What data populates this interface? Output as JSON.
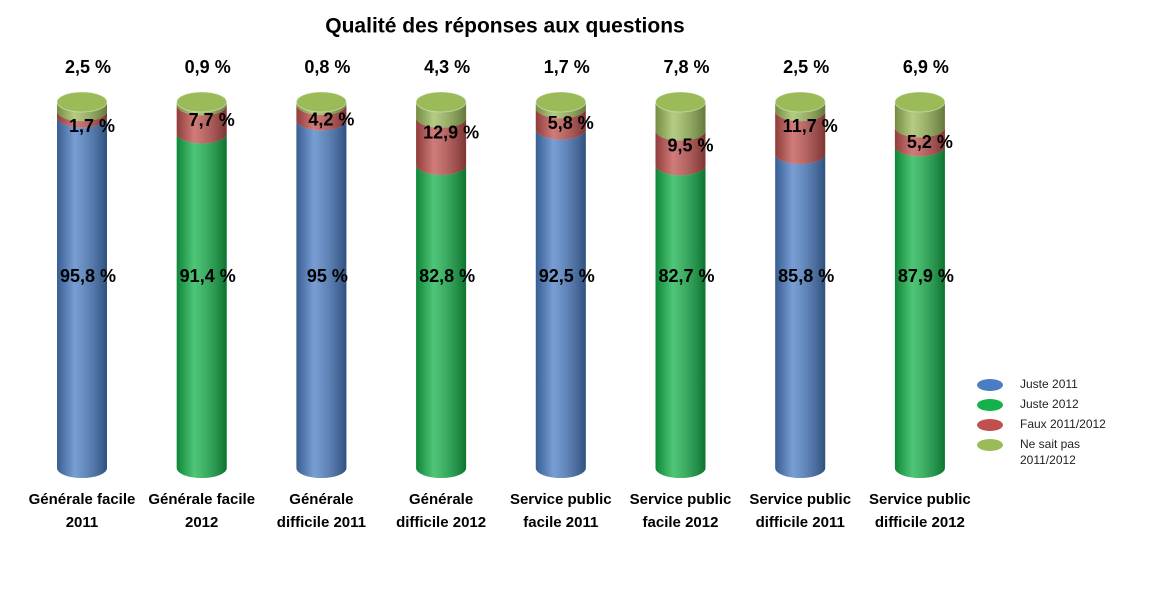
{
  "chart_data": {
    "type": "stacked_cylinder",
    "title": "Qualité des réponses aux questions",
    "categories": [
      "Générale facile 2011",
      "Générale facile 2012",
      "Générale difficile 2011",
      "Générale difficile 2012",
      "Service public facile 2011",
      "Service public facile 2012",
      "Service public difficile 2011",
      "Service public difficile 2012"
    ],
    "series": [
      {
        "name": "Juste 2011",
        "color": "#4a7dc4",
        "values": [
          95.8,
          null,
          95,
          null,
          92.5,
          null,
          85.8,
          null
        ],
        "value_labels": [
          "95,8 %",
          null,
          "95 %",
          null,
          "92,5 %",
          null,
          "85,8 %",
          null
        ]
      },
      {
        "name": "Juste 2012",
        "color": "#14b24a",
        "values": [
          null,
          91.4,
          null,
          82.8,
          null,
          82.7,
          null,
          87.9
        ],
        "value_labels": [
          null,
          "91,4 %",
          null,
          "82,8 %",
          null,
          "82,7 %",
          null,
          "87,9 %"
        ]
      },
      {
        "name": "Faux 2011/2012",
        "color": "#c0504d",
        "values": [
          1.7,
          7.7,
          4.2,
          12.9,
          5.8,
          9.5,
          11.7,
          5.2
        ],
        "value_labels": [
          "1,7 %",
          "7,7 %",
          "4,2 %",
          "12,9 %",
          "5,8 %",
          "9,5 %",
          "11,7 %",
          "5,2 %"
        ]
      },
      {
        "name": "Ne sait pas 2011/2012",
        "color": "#9bbb59",
        "values": [
          2.5,
          0.9,
          0.8,
          4.3,
          1.7,
          7.8,
          2.5,
          6.9
        ],
        "value_labels": [
          "2,5 %",
          "0,9 %",
          "0,8 %",
          "4,3 %",
          "1,7 %",
          "7,8 %",
          "2,5 %",
          "6,9 %"
        ]
      }
    ],
    "legend": "right"
  }
}
